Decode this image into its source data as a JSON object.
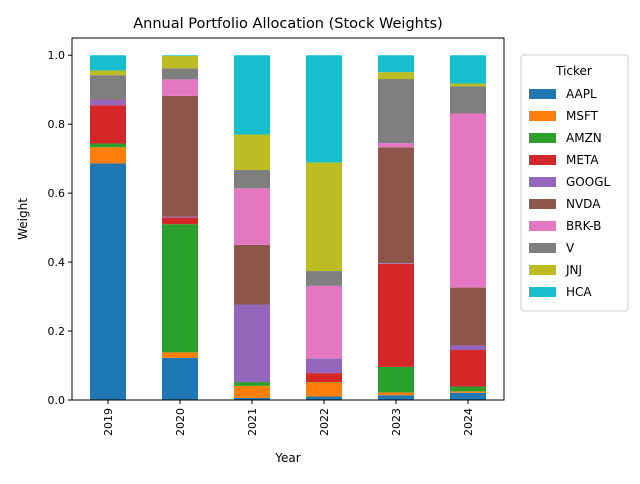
{
  "chart_data": {
    "type": "bar",
    "stacked": true,
    "title": "Annual Portfolio Allocation (Stock Weights)",
    "xlabel": "Year",
    "ylabel": "Weight",
    "ylim": [
      0,
      1.05
    ],
    "yticks": [
      "0.0",
      "0.2",
      "0.4",
      "0.6",
      "0.8",
      "1.0"
    ],
    "ytick_values": [
      0,
      0.2,
      0.4,
      0.6,
      0.8,
      1.0
    ],
    "grid": false,
    "legend_title": "Ticker",
    "legend_position": "outside-right-top",
    "categories": [
      "2019",
      "2020",
      "2021",
      "2022",
      "2023",
      "2024"
    ],
    "series": [
      {
        "name": "AAPL",
        "color": "#1f77b4",
        "values": [
          0.686,
          0.122,
          0.006,
          0.01,
          0.014,
          0.021
        ]
      },
      {
        "name": "MSFT",
        "color": "#ff7f0e",
        "values": [
          0.047,
          0.016,
          0.035,
          0.041,
          0.008,
          0.004
        ]
      },
      {
        "name": "AMZN",
        "color": "#2ca02c",
        "values": [
          0.011,
          0.372,
          0.011,
          0.001,
          0.074,
          0.014
        ]
      },
      {
        "name": "META",
        "color": "#d62728",
        "values": [
          0.111,
          0.019,
          0.0,
          0.026,
          0.299,
          0.106
        ]
      },
      {
        "name": "GOOGL",
        "color": "#9467bd",
        "values": [
          0.016,
          0.003,
          0.225,
          0.042,
          0.002,
          0.013
        ]
      },
      {
        "name": "NVDA",
        "color": "#8c564b",
        "values": [
          0.002,
          0.35,
          0.173,
          0.001,
          0.336,
          0.168
        ]
      },
      {
        "name": "BRK-B",
        "color": "#e377c2",
        "values": [
          0.0,
          0.048,
          0.164,
          0.21,
          0.012,
          0.505
        ]
      },
      {
        "name": "V",
        "color": "#7f7f7f",
        "values": [
          0.069,
          0.032,
          0.053,
          0.043,
          0.186,
          0.079
        ]
      },
      {
        "name": "JNJ",
        "color": "#bcbd22",
        "values": [
          0.014,
          0.036,
          0.103,
          0.315,
          0.02,
          0.008
        ]
      },
      {
        "name": "HCA",
        "color": "#17becf",
        "values": [
          0.044,
          0.002,
          0.23,
          0.311,
          0.049,
          0.082
        ]
      }
    ]
  }
}
